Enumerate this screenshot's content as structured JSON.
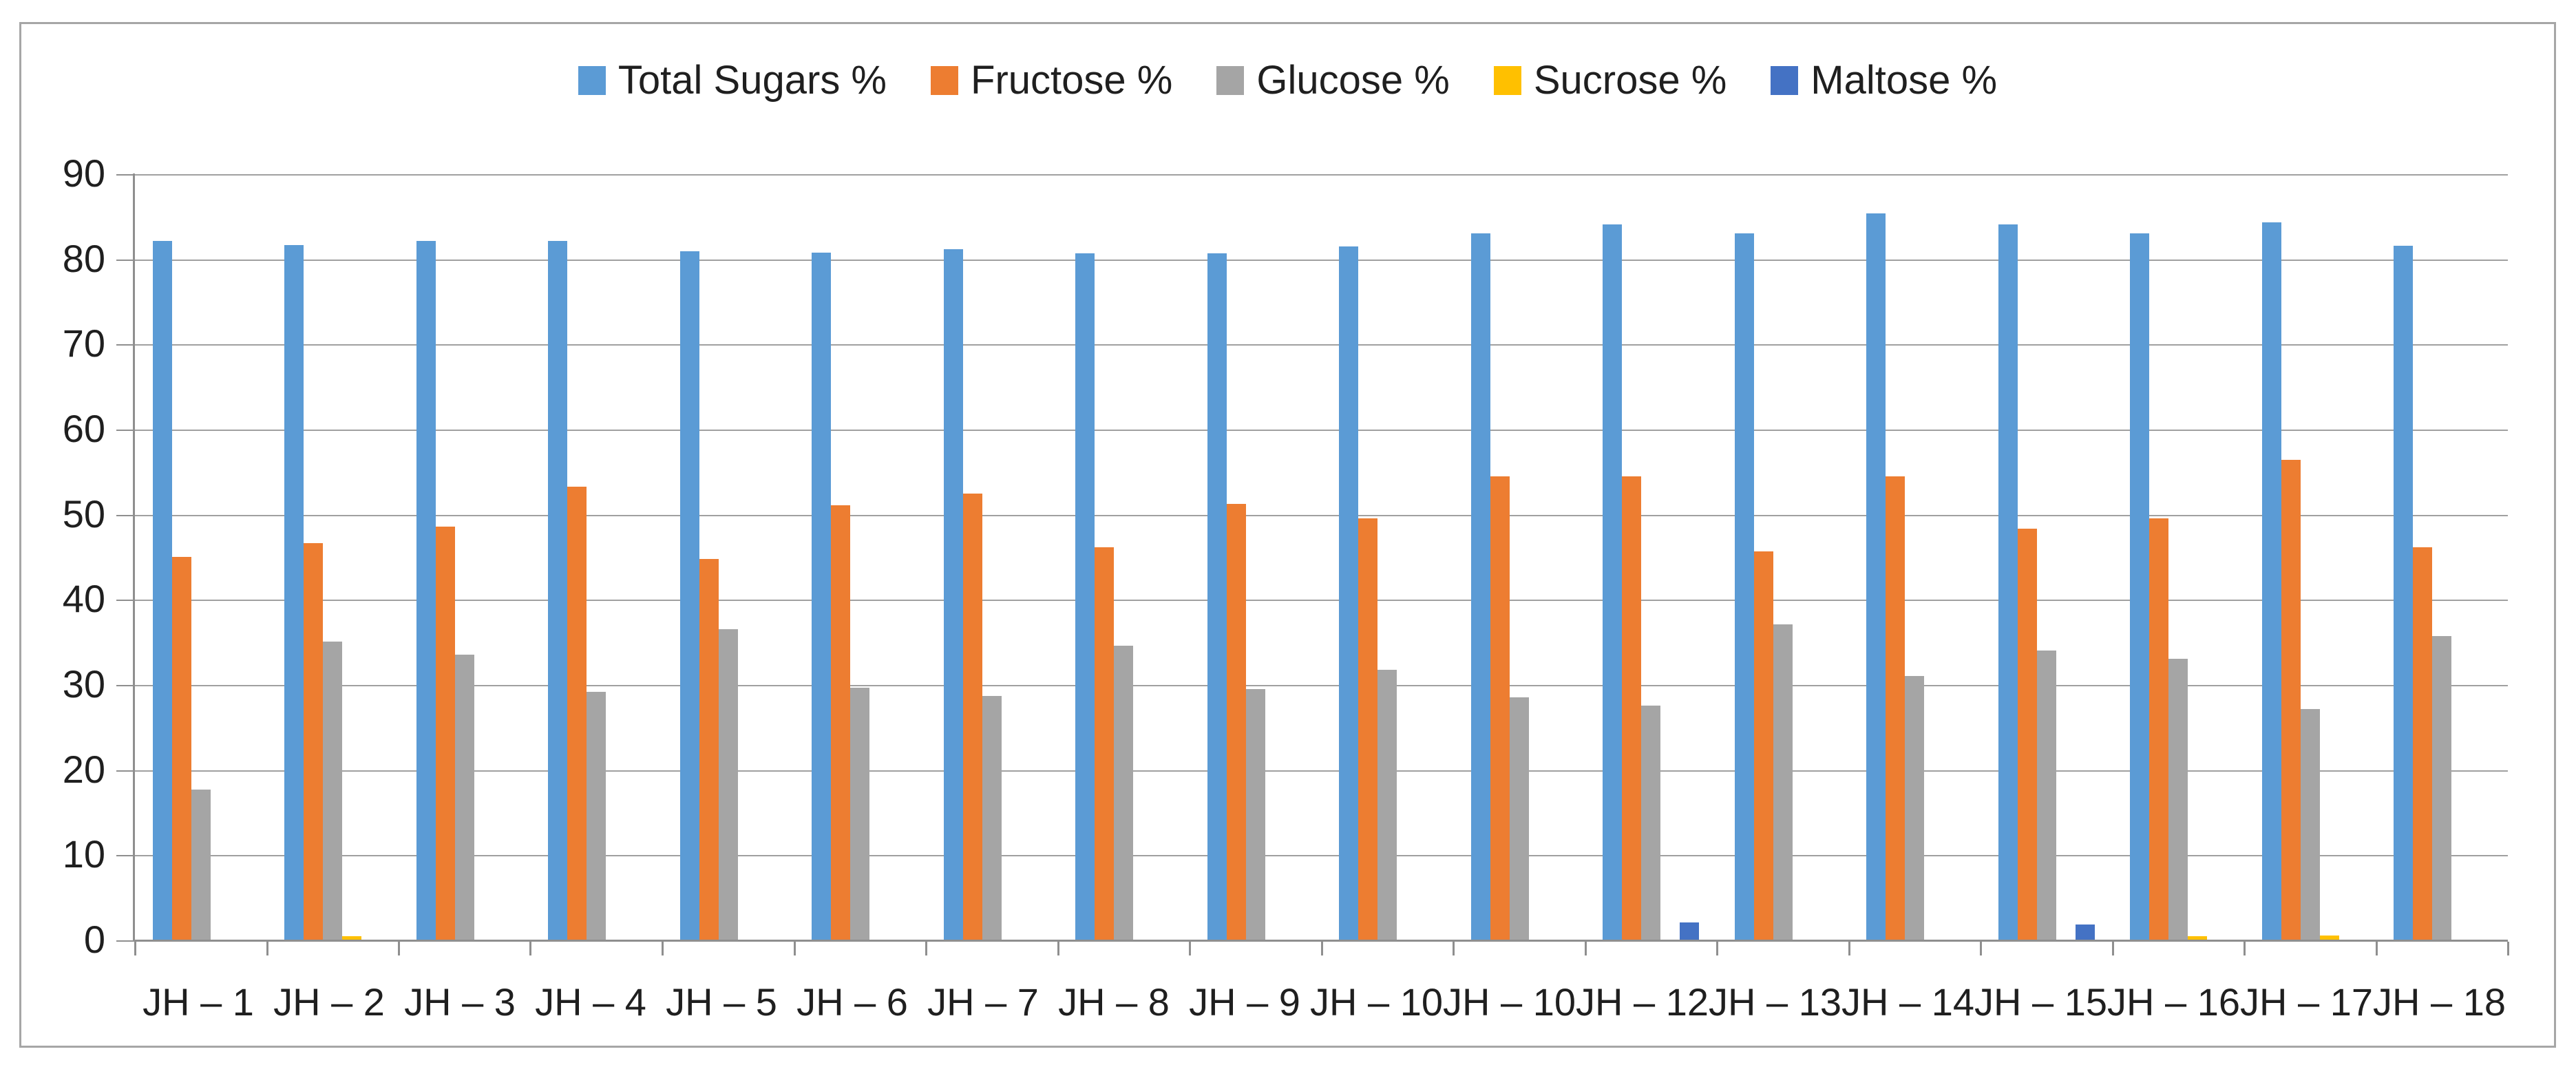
{
  "chart_data": {
    "type": "bar",
    "title": "",
    "xlabel": "",
    "ylabel": "",
    "grid": true,
    "legend_position": "top",
    "ylim": [
      0,
      90
    ],
    "ytick_interval": 10,
    "ytick_labels": [
      "0",
      "10",
      "20",
      "30",
      "40",
      "50",
      "60",
      "70",
      "80",
      "90"
    ],
    "categories": [
      "JH – 1",
      "JH – 2",
      "JH – 3",
      "JH – 4",
      "JH – 5",
      "JH – 6",
      "JH – 7",
      "JH – 8",
      "JH – 9",
      "JH – 10",
      "JH – 10",
      "JH – 12",
      "JH – 13",
      "JH – 14",
      "JH – 15",
      "JH – 16",
      "JH – 17",
      "JH – 18"
    ],
    "series": [
      {
        "name": "Total Sugars %",
        "color": "#5b9bd5",
        "values": [
          82.1,
          81.6,
          82.1,
          82.1,
          80.9,
          80.7,
          81.1,
          80.6,
          80.6,
          81.4,
          83.0,
          84.0,
          83.0,
          85.3,
          84.0,
          83.0,
          84.3,
          81.5
        ]
      },
      {
        "name": "Fructose %",
        "color": "#ed7d31",
        "values": [
          45.0,
          46.6,
          48.5,
          53.2,
          44.7,
          51.0,
          52.4,
          46.1,
          51.2,
          49.5,
          54.4,
          54.4,
          45.6,
          54.4,
          48.3,
          49.5,
          56.4,
          46.1
        ]
      },
      {
        "name": "Glucose %",
        "color": "#a5a5a5",
        "values": [
          17.6,
          35.0,
          33.5,
          29.1,
          36.5,
          29.6,
          28.6,
          34.5,
          29.4,
          31.7,
          28.5,
          27.5,
          37.0,
          31.0,
          34.0,
          33.0,
          27.1,
          35.7
        ]
      },
      {
        "name": "Sucrose %",
        "color": "#ffc000",
        "values": [
          0,
          0.4,
          0,
          0,
          0,
          0,
          0,
          0,
          0,
          0,
          0,
          0,
          0,
          0,
          0,
          0.4,
          0.5,
          0
        ]
      },
      {
        "name": "Maltose %",
        "color": "#4472c4",
        "values": [
          0,
          0,
          0,
          0,
          0,
          0,
          0,
          0,
          0,
          0,
          0,
          2.0,
          0,
          0,
          1.8,
          0,
          0,
          0
        ]
      }
    ]
  },
  "styles": {
    "frame_border_color": "#a6a6a6",
    "grid_color": "#a0a0a0",
    "axis_color": "#8f8f8f",
    "text_color": "#1f1f1f",
    "background": "#ffffff"
  }
}
